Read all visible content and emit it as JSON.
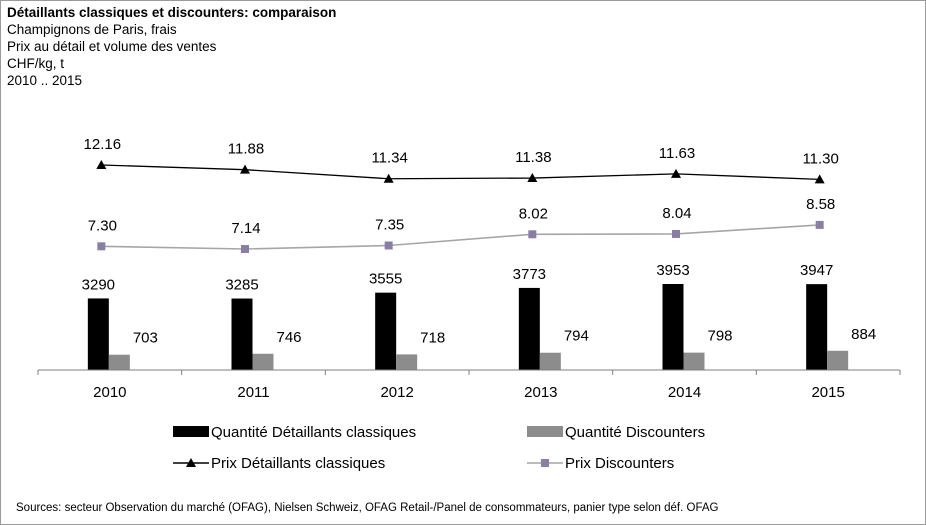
{
  "header": {
    "title": "Détaillants classiques et discounters: comparaison",
    "lines": [
      "Champignons de Paris, frais",
      "Prix au détail et volume des ventes",
      "CHF/kg, t",
      "2010 .. 2015"
    ]
  },
  "chart_data": {
    "type": "bar+line",
    "categories": [
      "2010",
      "2011",
      "2012",
      "2013",
      "2014",
      "2015"
    ],
    "bar_series": [
      {
        "name": "Quantité Détaillants classiques",
        "values": [
          3290,
          3285,
          3555,
          3773,
          3953,
          3947
        ],
        "color": "#000000"
      },
      {
        "name": "Quantité Discounters",
        "values": [
          703,
          746,
          718,
          794,
          798,
          884
        ],
        "color": "#8c8c8c"
      }
    ],
    "line_series": [
      {
        "name": "Prix Détaillants classiques",
        "values": [
          12.16,
          11.88,
          11.34,
          11.38,
          11.63,
          11.3
        ],
        "labels": [
          "12.16",
          "11.88",
          "11.34",
          "11.38",
          "11.63",
          "11.30"
        ],
        "color": "#000000",
        "marker": "triangle"
      },
      {
        "name": "Prix Discounters",
        "values": [
          7.3,
          7.14,
          7.35,
          8.02,
          8.04,
          8.58
        ],
        "labels": [
          "7.30",
          "7.14",
          "7.35",
          "8.02",
          "8.04",
          "8.58"
        ],
        "color": "#a6a6a6",
        "marker_color": "#8a7fa3",
        "marker": "square"
      }
    ],
    "legend_position": "bottom",
    "grid": false
  },
  "footer": {
    "source": "Sources: secteur Observation du marché (OFAG), Nielsen Schweiz, OFAG Retail-/Panel de consommateurs, panier type selon déf. OFAG"
  }
}
